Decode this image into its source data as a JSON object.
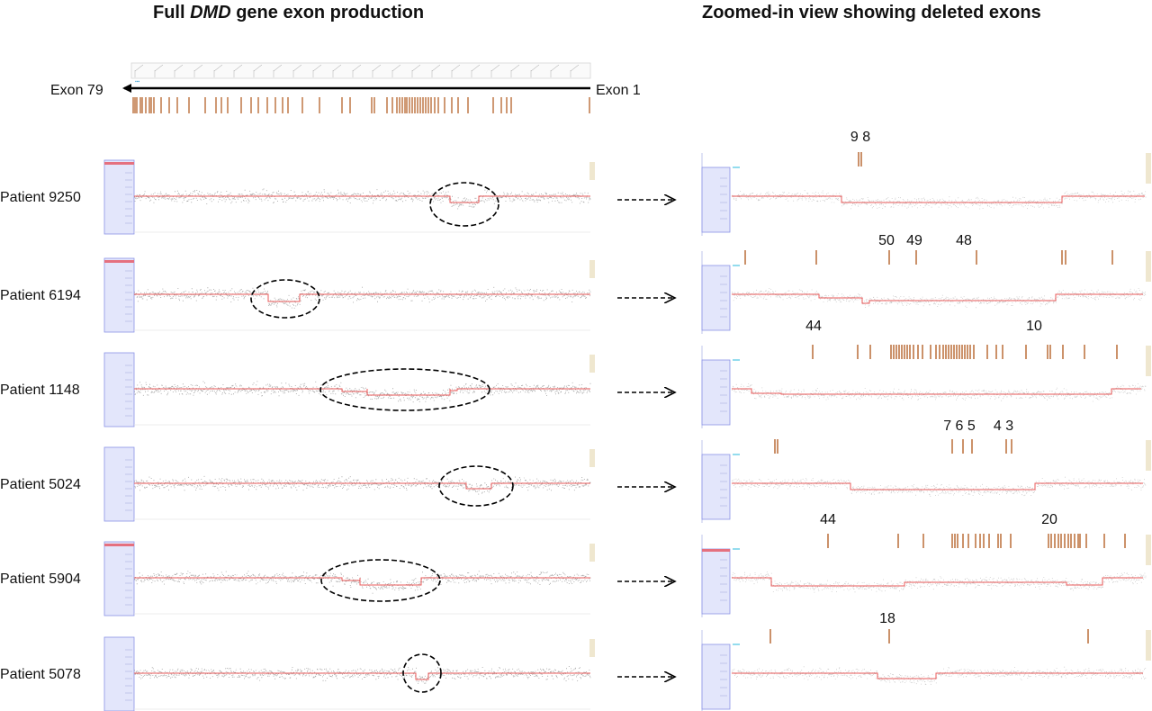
{
  "titles": {
    "left_pre": "Full ",
    "left_italic": "DMD",
    "left_post": " gene exon production",
    "right": "Zoomed-in view showing deleted exons"
  },
  "gene_track": {
    "label_left": "Exon 79",
    "label_right": "Exon 1"
  },
  "colors": {
    "exon_mark": "#b5622a",
    "signal_line": "#e85a5a",
    "sidebar_fill": "#e3e6fb",
    "sidebar_edge": "#8a93e6",
    "sidebar_top_bar": "#e5707f",
    "cyan_tick": "#6fd0e8",
    "right_tab": "#efe7cf",
    "noise": "#555555"
  },
  "patients": [
    {
      "label": "Patient 9250",
      "exon_labels": [
        {
          "text": "9 8"
        }
      ]
    },
    {
      "label": "Patient 6194",
      "exon_labels": [
        {
          "text": "50"
        },
        {
          "text": "49"
        },
        {
          "text": "48"
        }
      ]
    },
    {
      "label": "Patient 1148",
      "exon_labels": [
        {
          "text": "44"
        },
        {
          "text": "10"
        }
      ]
    },
    {
      "label": "Patient 5024",
      "exon_labels": [
        {
          "text": "7 6 5"
        },
        {
          "text": "4 3"
        }
      ]
    },
    {
      "label": "Patient 5904",
      "exon_labels": [
        {
          "text": "44"
        },
        {
          "text": "20"
        }
      ]
    },
    {
      "label": "Patient 5078",
      "exon_labels": [
        {
          "text": "18"
        }
      ]
    }
  ]
}
